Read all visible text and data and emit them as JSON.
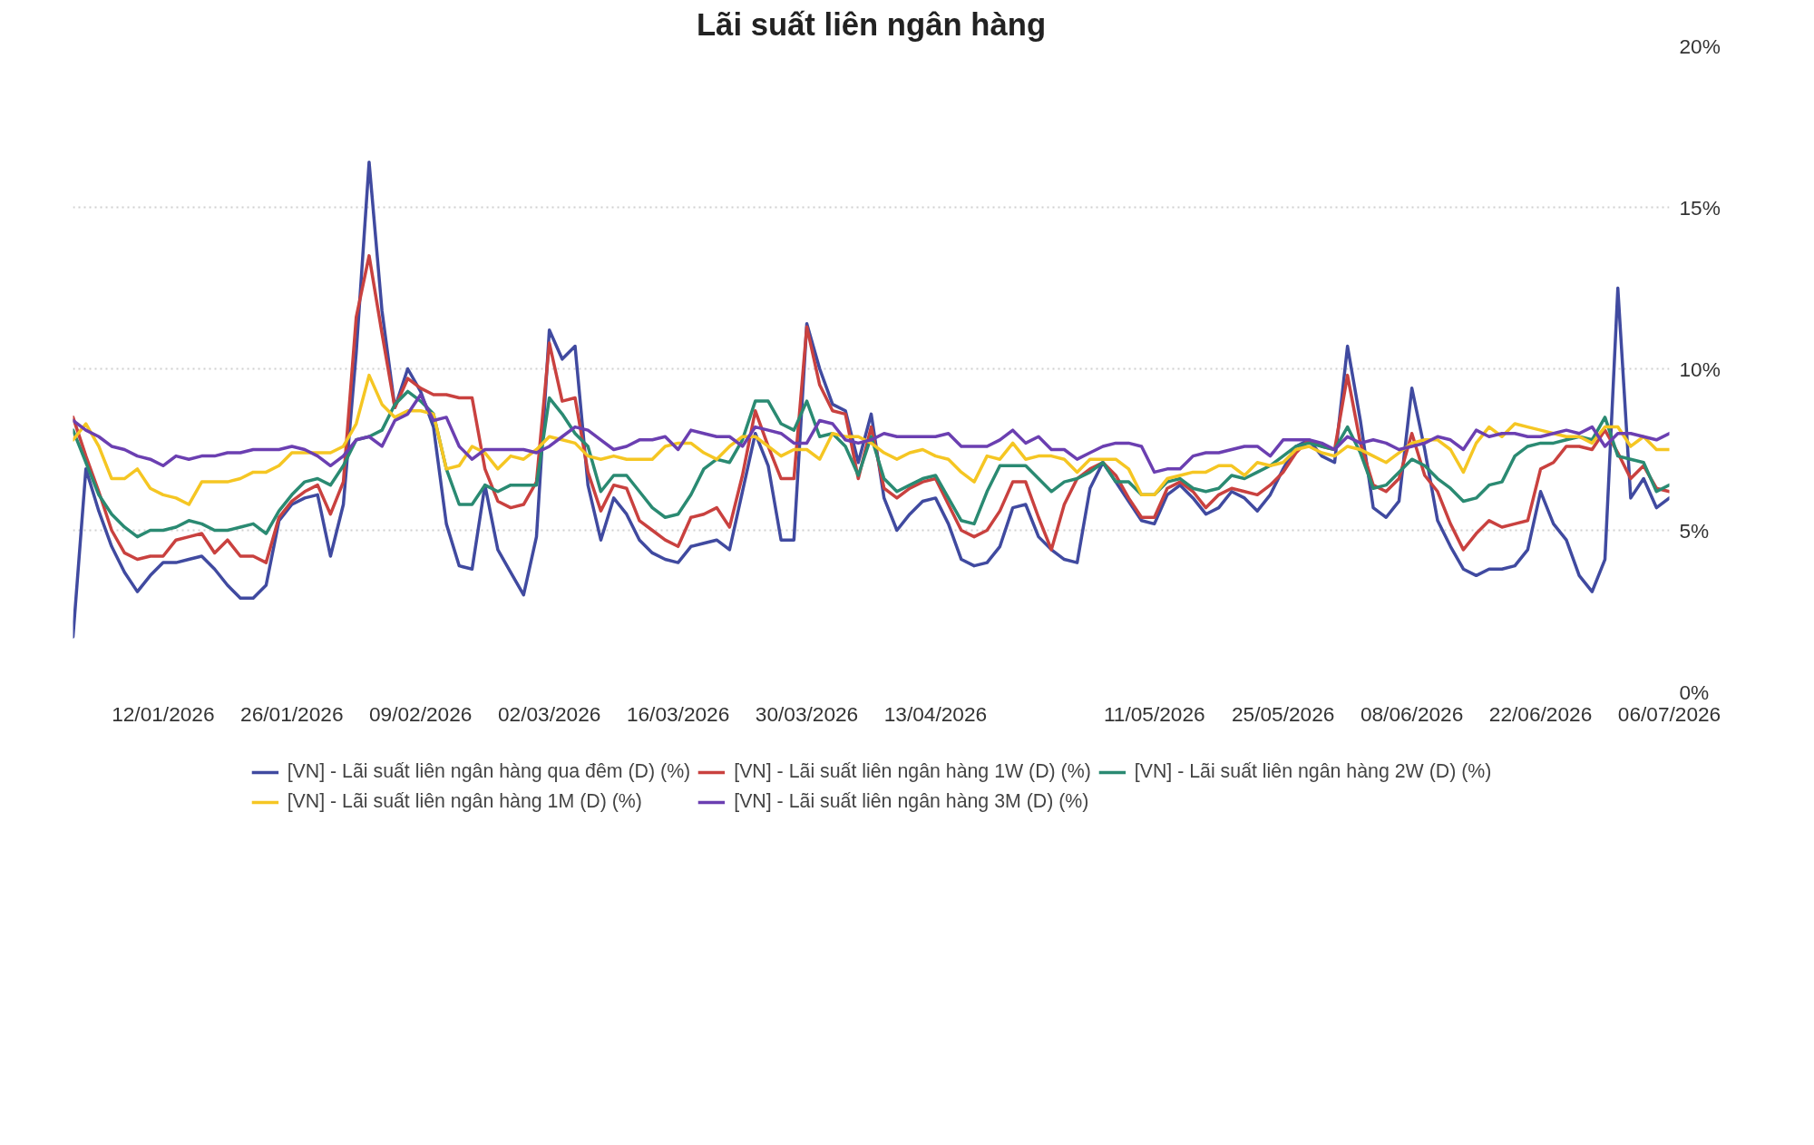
{
  "chart_data": {
    "type": "line",
    "title": "Lãi suất liên ngân hàng",
    "categories": [
      null,
      null,
      null,
      null,
      null,
      null,
      null,
      "12/01/2026",
      null,
      null,
      null,
      null,
      null,
      null,
      null,
      null,
      null,
      "26/01/2026",
      null,
      null,
      null,
      null,
      null,
      null,
      null,
      null,
      null,
      "09/02/2026",
      null,
      null,
      null,
      null,
      null,
      null,
      null,
      null,
      null,
      "02/03/2026",
      null,
      null,
      null,
      null,
      null,
      null,
      null,
      null,
      null,
      "16/03/2026",
      null,
      null,
      null,
      null,
      null,
      null,
      null,
      null,
      null,
      "30/03/2026",
      null,
      null,
      null,
      null,
      null,
      null,
      null,
      null,
      null,
      "13/04/2026",
      null,
      null,
      null,
      null,
      null,
      null,
      null,
      null,
      null,
      null,
      null,
      null,
      null,
      null,
      null,
      null,
      "11/05/2026",
      null,
      null,
      null,
      null,
      null,
      null,
      null,
      null,
      null,
      "25/05/2026",
      null,
      null,
      null,
      null,
      null,
      null,
      null,
      null,
      null,
      "08/06/2026",
      null,
      null,
      null,
      null,
      null,
      null,
      null,
      null,
      null,
      "22/06/2026",
      null,
      null,
      null,
      null,
      null,
      null,
      null,
      null,
      null,
      "06/07/2026"
    ],
    "ylim": [
      0,
      20
    ],
    "yticks": [
      {
        "value": 0,
        "label": "0%"
      },
      {
        "value": 5,
        "label": "5%"
      },
      {
        "value": 10,
        "label": "10%"
      },
      {
        "value": 15,
        "label": "15%"
      },
      {
        "value": 20,
        "label": "20%"
      }
    ],
    "grid": "y",
    "legend": "bottom",
    "line_style": "solid",
    "series": [
      {
        "name": "[VN] - Lãi suất liên ngân hàng qua đêm (D) (%)",
        "color": "#404aa0",
        "values": [
          1.7,
          6.9,
          5.6,
          4.5,
          3.7,
          3.1,
          3.6,
          4.0,
          4.0,
          4.1,
          4.2,
          3.8,
          3.3,
          2.9,
          2.9,
          3.3,
          5.3,
          5.8,
          6.0,
          6.1,
          4.2,
          5.8,
          10.5,
          16.4,
          11.8,
          8.8,
          10.0,
          9.3,
          8.2,
          5.2,
          3.9,
          3.8,
          6.4,
          4.4,
          3.7,
          3.0,
          4.8,
          11.2,
          10.3,
          10.7,
          6.4,
          4.7,
          6.0,
          5.5,
          4.7,
          4.3,
          4.1,
          4.0,
          4.5,
          4.6,
          4.7,
          4.4,
          6.2,
          8.0,
          7.0,
          4.7,
          4.7,
          11.4,
          10.0,
          8.9,
          8.7,
          7.1,
          8.6,
          6.0,
          5.0,
          5.5,
          5.9,
          6.0,
          5.2,
          4.1,
          3.9,
          4.0,
          4.5,
          5.7,
          5.8,
          4.8,
          4.4,
          4.1,
          4.0,
          6.3,
          7.1,
          6.5,
          5.9,
          5.3,
          5.2,
          6.1,
          6.4,
          6.0,
          5.5,
          5.7,
          6.2,
          6.0,
          5.6,
          6.1,
          6.9,
          7.6,
          7.8,
          7.3,
          7.1,
          10.7,
          8.4,
          5.7,
          5.4,
          5.9,
          9.4,
          7.5,
          5.3,
          4.5,
          3.8,
          3.6,
          3.8,
          3.8,
          3.9,
          4.4,
          6.2,
          5.2,
          4.7,
          3.6,
          3.1,
          4.1,
          12.5,
          6.0,
          6.6,
          5.7,
          6.0
        ]
      },
      {
        "name": "[VN] - Lãi suất liên ngân hàng 1W (D) (%)",
        "color": "#c9413f",
        "values": [
          8.5,
          7.3,
          6.2,
          5.0,
          4.3,
          4.1,
          4.2,
          4.2,
          4.7,
          4.8,
          4.9,
          4.3,
          4.7,
          4.2,
          4.2,
          4.0,
          5.4,
          5.9,
          6.2,
          6.4,
          5.5,
          6.5,
          11.6,
          13.5,
          11.1,
          8.8,
          9.7,
          9.4,
          9.2,
          9.2,
          9.1,
          9.1,
          6.9,
          5.9,
          5.7,
          5.8,
          6.5,
          10.8,
          9.0,
          9.1,
          6.8,
          5.6,
          6.4,
          6.3,
          5.3,
          5.0,
          4.7,
          4.5,
          5.4,
          5.5,
          5.7,
          5.1,
          6.7,
          8.7,
          7.6,
          6.6,
          6.6,
          11.3,
          9.5,
          8.7,
          8.6,
          6.6,
          8.2,
          6.3,
          6.0,
          6.3,
          6.5,
          6.6,
          5.8,
          5.0,
          4.8,
          5.0,
          5.6,
          6.5,
          6.5,
          5.4,
          4.4,
          5.8,
          6.6,
          6.9,
          7.1,
          6.7,
          6.0,
          5.4,
          5.4,
          6.3,
          6.5,
          6.2,
          5.7,
          6.1,
          6.3,
          6.2,
          6.1,
          6.4,
          6.8,
          7.4,
          7.8,
          7.6,
          7.5,
          9.8,
          7.7,
          6.4,
          6.2,
          6.6,
          8.0,
          6.7,
          6.2,
          5.2,
          4.4,
          4.9,
          5.3,
          5.1,
          5.2,
          5.3,
          6.9,
          7.1,
          7.6,
          7.6,
          7.5,
          8.1,
          7.4,
          6.6,
          7.0,
          6.3,
          6.2
        ]
      },
      {
        "name": "[VN] - Lãi suất liên ngân hàng 2W (D) (%)",
        "color": "#2a8a72",
        "values": [
          8.1,
          7.1,
          6.1,
          5.5,
          5.1,
          4.8,
          5.0,
          5.0,
          5.1,
          5.3,
          5.2,
          5.0,
          5.0,
          5.1,
          5.2,
          4.9,
          5.6,
          6.1,
          6.5,
          6.6,
          6.4,
          7.0,
          7.8,
          7.9,
          8.1,
          8.9,
          9.3,
          9.0,
          8.6,
          6.9,
          5.8,
          5.8,
          6.4,
          6.2,
          6.4,
          6.4,
          6.4,
          9.1,
          8.6,
          8.0,
          7.6,
          6.2,
          6.7,
          6.7,
          6.2,
          5.7,
          5.4,
          5.5,
          6.1,
          6.9,
          7.2,
          7.1,
          7.8,
          9.0,
          9.0,
          8.3,
          8.1,
          9.0,
          7.9,
          8.0,
          7.6,
          6.7,
          7.9,
          6.6,
          6.2,
          6.4,
          6.6,
          6.7,
          6.0,
          5.3,
          5.2,
          6.2,
          7.0,
          7.0,
          7.0,
          6.6,
          6.2,
          6.5,
          6.6,
          6.8,
          7.1,
          6.5,
          6.5,
          6.1,
          6.1,
          6.5,
          6.6,
          6.3,
          6.2,
          6.3,
          6.7,
          6.6,
          6.8,
          7.0,
          7.3,
          7.6,
          7.7,
          7.6,
          7.5,
          8.2,
          7.4,
          6.3,
          6.4,
          6.8,
          7.2,
          7.0,
          6.6,
          6.3,
          5.9,
          6.0,
          6.4,
          6.5,
          7.3,
          7.6,
          7.7,
          7.7,
          7.8,
          7.9,
          7.8,
          8.5,
          7.3,
          7.2,
          7.1,
          6.2,
          6.4
        ]
      },
      {
        "name": "[VN] - Lãi suất liên ngân hàng 1M (D) (%)",
        "color": "#f5c623",
        "values": [
          7.8,
          8.3,
          7.6,
          6.6,
          6.6,
          6.9,
          6.3,
          6.1,
          6.0,
          5.8,
          6.5,
          6.5,
          6.5,
          6.6,
          6.8,
          6.8,
          7.0,
          7.4,
          7.4,
          7.4,
          7.4,
          7.6,
          8.3,
          9.8,
          8.9,
          8.5,
          8.7,
          8.7,
          8.6,
          6.9,
          7.0,
          7.6,
          7.4,
          6.9,
          7.3,
          7.2,
          7.5,
          7.9,
          7.8,
          7.7,
          7.3,
          7.2,
          7.3,
          7.2,
          7.2,
          7.2,
          7.6,
          7.7,
          7.7,
          7.4,
          7.2,
          7.6,
          7.9,
          7.9,
          7.6,
          7.3,
          7.5,
          7.5,
          7.2,
          8.0,
          7.9,
          7.9,
          7.7,
          7.4,
          7.2,
          7.4,
          7.5,
          7.3,
          7.2,
          6.8,
          6.5,
          7.3,
          7.2,
          7.7,
          7.2,
          7.3,
          7.3,
          7.2,
          6.8,
          7.2,
          7.2,
          7.2,
          6.9,
          6.1,
          6.1,
          6.6,
          6.7,
          6.8,
          6.8,
          7.0,
          7.0,
          6.7,
          7.1,
          7.0,
          7.1,
          7.5,
          7.6,
          7.4,
          7.3,
          7.6,
          7.5,
          7.3,
          7.1,
          7.4,
          7.7,
          7.8,
          7.8,
          7.5,
          6.8,
          7.7,
          8.2,
          7.9,
          8.3,
          8.2,
          8.1,
          8.0,
          7.9,
          7.9,
          7.7,
          8.2,
          8.2,
          7.6,
          7.9,
          7.5,
          7.5
        ]
      },
      {
        "name": "[VN] - Lãi suất liên ngân hàng 3M (D) (%)",
        "color": "#6b3fb1",
        "values": [
          8.4,
          8.1,
          7.9,
          7.6,
          7.5,
          7.3,
          7.2,
          7.0,
          7.3,
          7.2,
          7.3,
          7.3,
          7.4,
          7.4,
          7.5,
          7.5,
          7.5,
          7.6,
          7.5,
          7.3,
          7.0,
          7.3,
          7.8,
          7.9,
          7.6,
          8.4,
          8.6,
          9.2,
          8.4,
          8.5,
          7.6,
          7.2,
          7.5,
          7.5,
          7.5,
          7.5,
          7.4,
          7.6,
          7.9,
          8.2,
          8.1,
          7.8,
          7.5,
          7.6,
          7.8,
          7.8,
          7.9,
          7.5,
          8.1,
          8.0,
          7.9,
          7.9,
          7.6,
          8.2,
          8.1,
          8.0,
          7.7,
          7.7,
          8.4,
          8.3,
          7.8,
          7.7,
          7.8,
          8.0,
          7.9,
          7.9,
          7.9,
          7.9,
          8.0,
          7.6,
          7.6,
          7.6,
          7.8,
          8.1,
          7.7,
          7.9,
          7.5,
          7.5,
          7.2,
          7.4,
          7.6,
          7.7,
          7.7,
          7.6,
          6.8,
          6.9,
          6.9,
          7.3,
          7.4,
          7.4,
          7.5,
          7.6,
          7.6,
          7.3,
          7.8,
          7.8,
          7.8,
          7.7,
          7.5,
          7.9,
          7.7,
          7.8,
          7.7,
          7.5,
          7.6,
          7.7,
          7.9,
          7.8,
          7.5,
          8.1,
          7.9,
          8.0,
          8.0,
          7.9,
          7.9,
          8.0,
          8.1,
          8.0,
          8.2,
          7.6,
          8.0,
          8.0,
          7.9,
          7.8,
          8.0
        ]
      }
    ]
  }
}
